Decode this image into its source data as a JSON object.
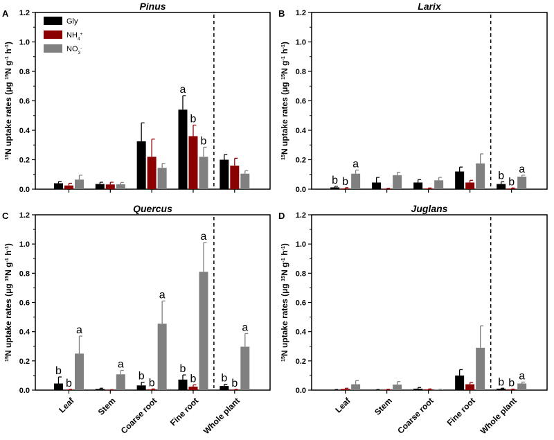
{
  "chart_data": [
    {
      "type": "bar",
      "panel": "A",
      "title": "Pinus",
      "categories": [
        "Leaf",
        "Stem",
        "Coarse root",
        "Fine root",
        "Whole plant"
      ],
      "ylim": [
        0,
        1.2
      ],
      "series": [
        {
          "name": "Gly",
          "values": [
            0.04,
            0.035,
            0.325,
            0.54,
            0.2
          ],
          "errors": [
            0.012,
            0.012,
            0.125,
            0.095,
            0.035
          ],
          "letters": [
            "",
            "",
            "",
            "a",
            ""
          ]
        },
        {
          "name": "NH4+",
          "values": [
            0.025,
            0.032,
            0.22,
            0.36,
            0.16
          ],
          "errors": [
            0.015,
            0.015,
            0.12,
            0.075,
            0.05
          ],
          "letters": [
            "",
            "",
            "",
            "b",
            ""
          ]
        },
        {
          "name": "NO3-",
          "values": [
            0.065,
            0.033,
            0.145,
            0.22,
            0.105
          ],
          "errors": [
            0.03,
            0.012,
            0.03,
            0.065,
            0.02
          ],
          "letters": [
            "",
            "",
            "",
            "b",
            ""
          ]
        }
      ]
    },
    {
      "type": "bar",
      "panel": "B",
      "title": "Larix",
      "categories": [
        "Leaf",
        "Stem",
        "Coarse root",
        "Fine root",
        "Whole plant"
      ],
      "ylim": [
        0,
        1.2
      ],
      "series": [
        {
          "name": "Gly",
          "values": [
            0.012,
            0.045,
            0.045,
            0.12,
            0.035
          ],
          "errors": [
            0.008,
            0.035,
            0.02,
            0.03,
            0.015
          ],
          "letters": [
            "b",
            "",
            "",
            "",
            "b"
          ]
        },
        {
          "name": "NH4+",
          "values": [
            0.005,
            0.003,
            0.005,
            0.045,
            0.005
          ],
          "errors": [
            0.005,
            0.003,
            0.003,
            0.015,
            0.003
          ],
          "letters": [
            "b",
            "",
            "",
            "",
            "b"
          ]
        },
        {
          "name": "NO3-",
          "values": [
            0.105,
            0.095,
            0.06,
            0.175,
            0.085
          ],
          "errors": [
            0.025,
            0.02,
            0.02,
            0.065,
            0.01
          ],
          "letters": [
            "a",
            "",
            "",
            "",
            "a"
          ]
        }
      ]
    },
    {
      "type": "bar",
      "panel": "C",
      "title": "Quercus",
      "categories": [
        "Leaf",
        "Stem",
        "Coarse root",
        "Fine root",
        "Whole plant"
      ],
      "ylim": [
        0,
        1.2
      ],
      "series": [
        {
          "name": "Gly",
          "values": [
            0.045,
            0.008,
            0.032,
            0.072,
            0.028
          ],
          "errors": [
            0.045,
            0.005,
            0.022,
            0.032,
            0.012
          ],
          "letters": [
            "b",
            "",
            "b",
            "b",
            "b"
          ]
        },
        {
          "name": "NH4+",
          "values": [
            0.003,
            0.002,
            0.005,
            0.024,
            0.003
          ],
          "errors": [
            0.002,
            0.001,
            0.003,
            0.012,
            0.002
          ],
          "letters": [
            "b",
            "",
            "b",
            "b",
            "b"
          ]
        },
        {
          "name": "NO3-",
          "values": [
            0.25,
            0.108,
            0.455,
            0.81,
            0.297
          ],
          "errors": [
            0.12,
            0.027,
            0.155,
            0.2,
            0.09
          ],
          "letters": [
            "a",
            "a",
            "a",
            "a",
            "a"
          ]
        }
      ]
    },
    {
      "type": "bar",
      "panel": "D",
      "title": "Juglans",
      "categories": [
        "Leaf",
        "Stem",
        "Coarse root",
        "Fine root",
        "Whole plant"
      ],
      "ylim": [
        0,
        1.2
      ],
      "series": [
        {
          "name": "Gly",
          "values": [
            0.002,
            0.002,
            0.01,
            0.1,
            0.01
          ],
          "errors": [
            0.002,
            0.002,
            0.008,
            0.04,
            0.003
          ],
          "letters": [
            "",
            "",
            "",
            "",
            "b"
          ]
        },
        {
          "name": "NH4+",
          "values": [
            0.008,
            0.003,
            0.005,
            0.04,
            0.005
          ],
          "errors": [
            0.005,
            0.003,
            0.003,
            0.012,
            0.002
          ],
          "letters": [
            "",
            "",
            "",
            "",
            "b"
          ]
        },
        {
          "name": "NO3-",
          "values": [
            0.04,
            0.038,
            0.003,
            0.29,
            0.045
          ],
          "errors": [
            0.025,
            0.02,
            0.003,
            0.15,
            0.01
          ],
          "letters": [
            "",
            "",
            "",
            "",
            "a"
          ]
        }
      ]
    }
  ],
  "yticks": [
    "0.0",
    "0.2",
    "0.4",
    "0.6",
    "0.8",
    "1.0",
    "1.2"
  ],
  "ylabel": [
    {
      "t": "15",
      "s": "sup"
    },
    {
      "t": "N uptake rates (μg "
    },
    {
      "t": "15",
      "s": "sup"
    },
    {
      "t": "N g"
    },
    {
      "t": "-1",
      "s": "sup"
    },
    {
      "t": " h"
    },
    {
      "t": "-1",
      "s": "sup"
    },
    {
      "t": ")"
    }
  ],
  "legend": [
    {
      "parts": [
        {
          "t": "Gly"
        }
      ]
    },
    {
      "parts": [
        {
          "t": "NH"
        },
        {
          "t": "4",
          "s": "sub"
        },
        {
          "t": "+",
          "s": "sup"
        }
      ]
    },
    {
      "parts": [
        {
          "t": "NO"
        },
        {
          "t": "3",
          "s": "sub"
        },
        {
          "t": "-",
          "s": "sup"
        }
      ]
    }
  ],
  "colors": {
    "Gly": "#000000",
    "NH4+": "#8b0000",
    "NO3-": "#808080"
  }
}
